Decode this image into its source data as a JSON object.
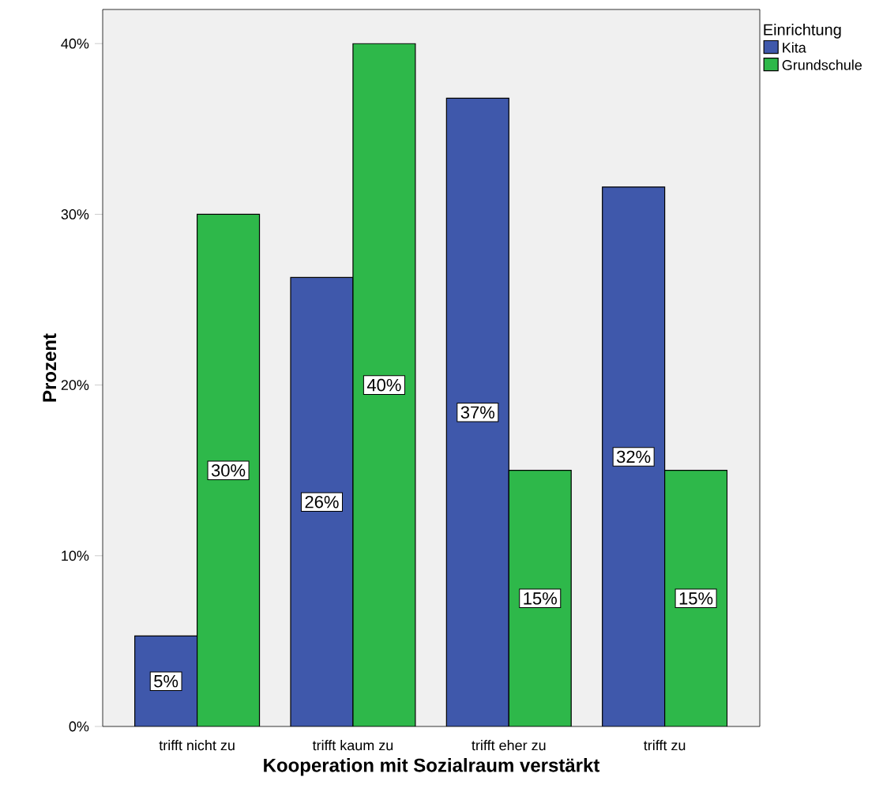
{
  "chart_data": {
    "type": "bar",
    "xlabel": "Kooperation mit Sozialraum verstärkt",
    "ylabel": "Prozent",
    "legend_title": "Einrichtung",
    "categories": [
      "trifft nicht zu",
      "trifft kaum zu",
      "trifft eher zu",
      "trifft zu"
    ],
    "series": [
      {
        "name": "Kita",
        "color": "#3f58ab",
        "values": [
          5.3,
          26.3,
          36.8,
          31.6
        ],
        "value_labels": [
          "5%",
          "26%",
          "37%",
          "32%"
        ]
      },
      {
        "name": "Grundschule",
        "color": "#2eb84a",
        "values": [
          30,
          40,
          15,
          15
        ],
        "value_labels": [
          "30%",
          "40%",
          "15%",
          "15%"
        ]
      }
    ],
    "ylim": [
      0,
      42
    ],
    "yticks": [
      {
        "value": 0,
        "label": "0%"
      },
      {
        "value": 10,
        "label": "10%"
      },
      {
        "value": 20,
        "label": "20%"
      },
      {
        "value": 30,
        "label": "30%"
      },
      {
        "value": 40,
        "label": "40%"
      }
    ],
    "legend": "top right",
    "grid": false
  }
}
